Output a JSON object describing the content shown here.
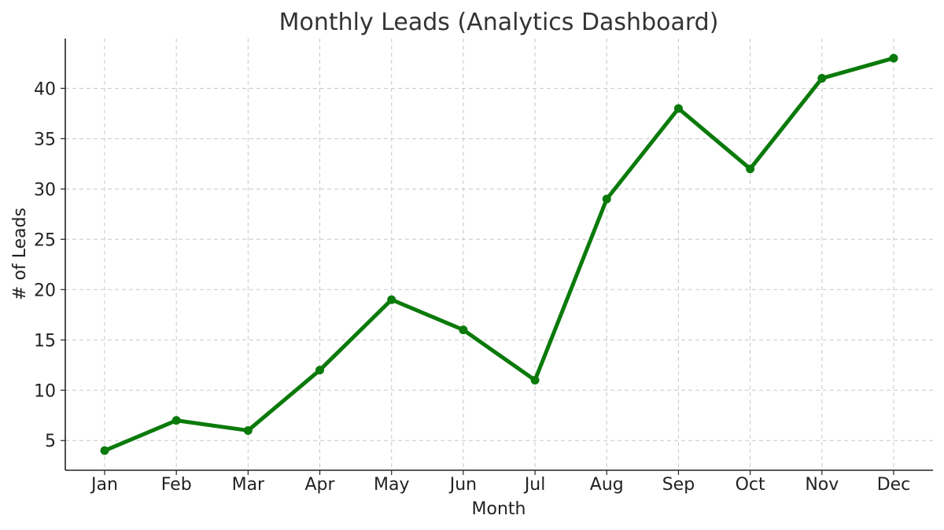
{
  "chart_data": {
    "type": "line",
    "title": "Monthly Leads (Analytics Dashboard)",
    "xlabel": "Month",
    "ylabel": "# of Leads",
    "categories": [
      "Jan",
      "Feb",
      "Mar",
      "Apr",
      "May",
      "Jun",
      "Jul",
      "Aug",
      "Sep",
      "Oct",
      "Nov",
      "Dec"
    ],
    "series": [
      {
        "values": [
          4,
          7,
          6,
          12,
          19,
          16,
          11,
          29,
          38,
          32,
          41,
          43
        ],
        "color": "#0a7a0a"
      }
    ],
    "y_ticks": [
      5,
      10,
      15,
      20,
      25,
      30,
      35,
      40
    ],
    "ylim": [
      2.05,
      44.95
    ],
    "grid": true,
    "markers": true
  }
}
